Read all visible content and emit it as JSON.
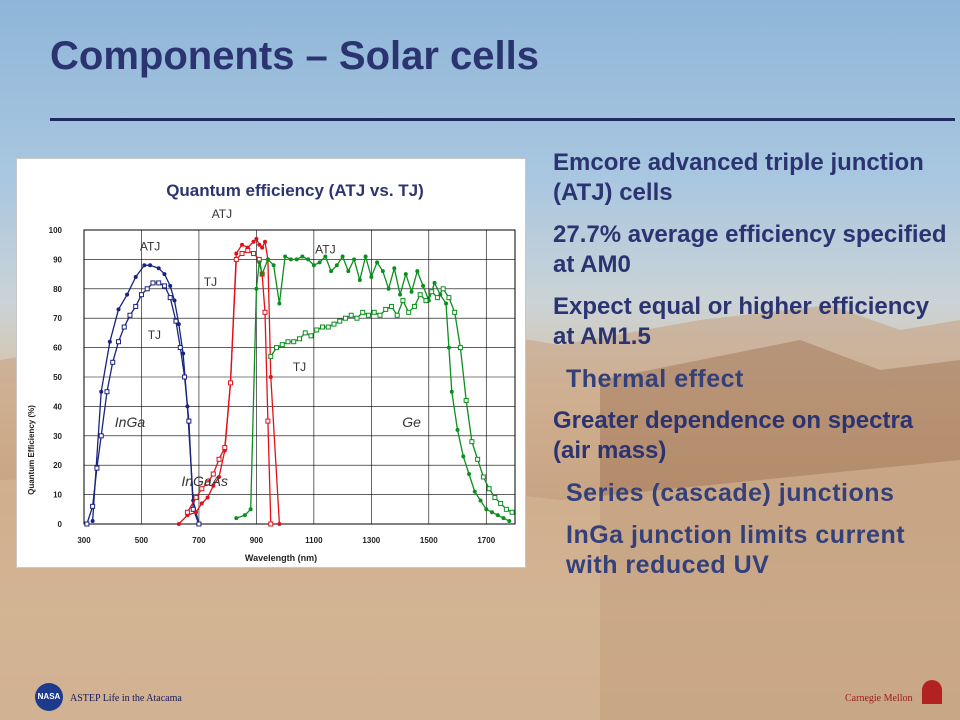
{
  "slide": {
    "title": "Components – Solar cells"
  },
  "bullets": [
    {
      "text": "Emcore advanced triple junction (ATJ) cells",
      "level": 1
    },
    {
      "text": "27.7% average efficiency specified at AM0",
      "level": 1
    },
    {
      "text": "Expect equal or higher efficiency at AM1.5",
      "level": 1
    },
    {
      "text": "Thermal effect",
      "level": 2
    },
    {
      "text": "Greater dependence on spectra (air mass)",
      "level": 1
    },
    {
      "text": "Series (cascade) junctions",
      "level": 2
    },
    {
      "text": "InGa junction limits current with reduced UV",
      "level": 2
    }
  ],
  "footer": {
    "left": "ASTEP Life in the Atacama",
    "right": "Carnegie Mellon",
    "left_logo_icon": "nasa-logo-icon",
    "right_logo_icon": "cmu-logo-icon"
  },
  "chart_data": {
    "type": "line",
    "title": "Quantum efficiency (ATJ vs. TJ)",
    "xlabel": "Wavelength (nm)",
    "ylabel": "Quantum Efficiency (%)",
    "xlim": [
      300,
      1800
    ],
    "ylim": [
      0,
      100
    ],
    "xticks": [
      300,
      500,
      700,
      900,
      1100,
      1300,
      1500,
      1700
    ],
    "yticks": [
      0,
      10,
      20,
      30,
      40,
      50,
      60,
      70,
      80,
      90,
      100
    ],
    "grid": true,
    "colors": {
      "InGa": "#1a237e",
      "InGaAs": "#e3101a",
      "Ge": "#0b8f1e"
    },
    "series": [
      {
        "name": "InGa ATJ",
        "color": "#1a237e",
        "marker": "filled",
        "x": [
          330,
          360,
          390,
          420,
          450,
          480,
          510,
          530,
          560,
          580,
          600,
          615,
          630,
          645,
          660,
          680,
          700
        ],
        "y": [
          1,
          45,
          62,
          73,
          78,
          84,
          88,
          88,
          87,
          85,
          81,
          76,
          68,
          58,
          40,
          8,
          0
        ]
      },
      {
        "name": "InGa TJ",
        "color": "#1a237e",
        "marker": "open",
        "x": [
          310,
          330,
          345,
          360,
          380,
          400,
          420,
          440,
          460,
          480,
          500,
          520,
          540,
          560,
          580,
          600,
          620,
          635,
          650,
          665,
          680,
          700
        ],
        "y": [
          0,
          6,
          19,
          30,
          45,
          55,
          62,
          67,
          71,
          74,
          78,
          80,
          82,
          82,
          81,
          77,
          69,
          60,
          50,
          35,
          5,
          0
        ]
      },
      {
        "name": "InGaAs ATJ",
        "color": "#e3101a",
        "marker": "filled",
        "x": [
          630,
          660,
          690,
          710,
          730,
          750,
          770,
          790,
          810,
          830,
          850,
          870,
          890,
          900,
          910,
          920,
          930,
          940,
          950,
          980
        ],
        "y": [
          0,
          3,
          4,
          7,
          9,
          13,
          16,
          25,
          48,
          92,
          95,
          94,
          96,
          97,
          95,
          94,
          96,
          90,
          50,
          0
        ]
      },
      {
        "name": "InGaAs TJ",
        "color": "#e3101a",
        "marker": "open",
        "x": [
          660,
          690,
          710,
          730,
          750,
          770,
          790,
          810,
          830,
          850,
          870,
          890,
          910,
          920,
          930,
          940,
          950
        ],
        "y": [
          4,
          9,
          12,
          14,
          17,
          22,
          26,
          48,
          90,
          92,
          93,
          92,
          90,
          85,
          72,
          35,
          0
        ]
      },
      {
        "name": "Ge ATJ",
        "color": "#0b8f1e",
        "marker": "filled",
        "x": [
          830,
          860,
          880,
          900,
          910,
          920,
          940,
          960,
          980,
          1000,
          1020,
          1040,
          1060,
          1080,
          1100,
          1120,
          1140,
          1160,
          1180,
          1200,
          1220,
          1240,
          1260,
          1280,
          1300,
          1320,
          1340,
          1360,
          1380,
          1400,
          1420,
          1440,
          1460,
          1480,
          1500,
          1520,
          1540,
          1560,
          1570,
          1580,
          1600,
          1620,
          1640,
          1660,
          1680,
          1700,
          1720,
          1740,
          1760,
          1780
        ],
        "y": [
          2,
          3,
          5,
          80,
          89,
          85,
          90,
          88,
          75,
          91,
          90,
          90,
          91,
          90,
          88,
          89,
          91,
          86,
          88,
          91,
          86,
          90,
          83,
          91,
          84,
          89,
          86,
          80,
          87,
          78,
          85,
          79,
          86,
          81,
          76,
          82,
          78,
          75,
          60,
          45,
          32,
          23,
          17,
          11,
          8,
          5,
          4,
          3,
          2,
          1
        ]
      },
      {
        "name": "Ge TJ",
        "color": "#0b8f1e",
        "marker": "open",
        "x": [
          950,
          970,
          990,
          1010,
          1030,
          1050,
          1070,
          1090,
          1110,
          1130,
          1150,
          1170,
          1190,
          1210,
          1230,
          1250,
          1270,
          1290,
          1310,
          1330,
          1350,
          1370,
          1390,
          1410,
          1430,
          1450,
          1470,
          1490,
          1510,
          1530,
          1550,
          1570,
          1590,
          1610,
          1630,
          1650,
          1670,
          1690,
          1710,
          1730,
          1750,
          1770,
          1790
        ],
        "y": [
          57,
          60,
          61,
          62,
          62,
          63,
          65,
          64,
          66,
          67,
          67,
          68,
          69,
          70,
          71,
          70,
          72,
          71,
          72,
          71,
          73,
          74,
          71,
          76,
          72,
          74,
          78,
          76,
          79,
          77,
          80,
          77,
          72,
          60,
          42,
          28,
          22,
          16,
          12,
          9,
          7,
          5,
          4
        ]
      }
    ],
    "annotations": [
      {
        "text": "ATJ",
        "x": 780,
        "y": 104
      },
      {
        "text": "ATJ",
        "x": 530,
        "y": 93
      },
      {
        "text": "TJ",
        "x": 545,
        "y": 63
      },
      {
        "text": "TJ",
        "x": 740,
        "y": 81
      },
      {
        "text": "ATJ",
        "x": 1140,
        "y": 92
      },
      {
        "text": "TJ",
        "x": 1050,
        "y": 52
      },
      {
        "text": "InGa",
        "x": 460,
        "y": 33,
        "italic": true
      },
      {
        "text": "InGaAs",
        "x": 720,
        "y": 13,
        "italic": true
      },
      {
        "text": "Ge",
        "x": 1440,
        "y": 33,
        "italic": true
      }
    ]
  }
}
